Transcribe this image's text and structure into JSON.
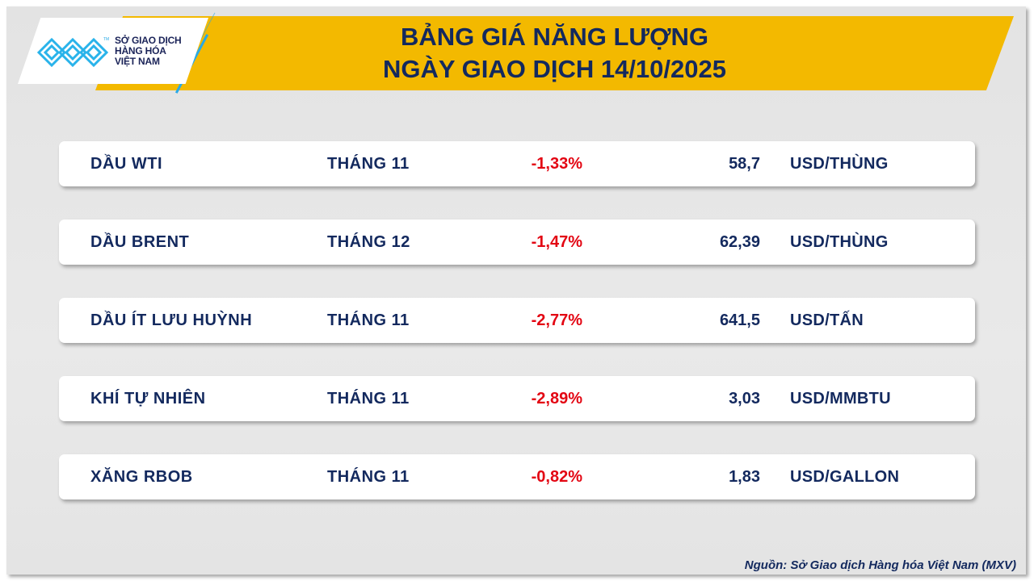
{
  "header": {
    "title_line1": "BẢNG GIÁ NĂNG LƯỢNG",
    "title_line2": "NGÀY GIAO DỊCH 14/10/2025"
  },
  "logo": {
    "text_line1": "SỞ GIAO DỊCH",
    "text_line2": "HÀNG HÓA",
    "text_line3": "VIỆT NAM",
    "tm": "TM"
  },
  "rows": [
    {
      "name": "DẦU WTI",
      "month": "THÁNG 11",
      "change": "-1,33%",
      "price": "58,7",
      "unit": "USD/THÙNG"
    },
    {
      "name": "DẦU BRENT",
      "month": "THÁNG 12",
      "change": "-1,47%",
      "price": "62,39",
      "unit": "USD/THÙNG"
    },
    {
      "name": "DẦU ÍT LƯU HUỲNH",
      "month": "THÁNG 11",
      "change": "-2,77%",
      "price": "641,5",
      "unit": "USD/TẤN"
    },
    {
      "name": "KHÍ TỰ NHIÊN",
      "month": "THÁNG 11",
      "change": "-2,89%",
      "price": "3,03",
      "unit": "USD/MMBTU"
    },
    {
      "name": "XĂNG RBOB",
      "month": "THÁNG 11",
      "change": "-0,82%",
      "price": "1,83",
      "unit": "USD/GALLON"
    }
  ],
  "source": "Nguồn: Sở Giao dịch Hàng hóa Việt Nam (MXV)",
  "colors": {
    "banner": "#f3b900",
    "text": "#13295e",
    "negative": "#e30613",
    "logo_blue": "#29a9e6"
  }
}
